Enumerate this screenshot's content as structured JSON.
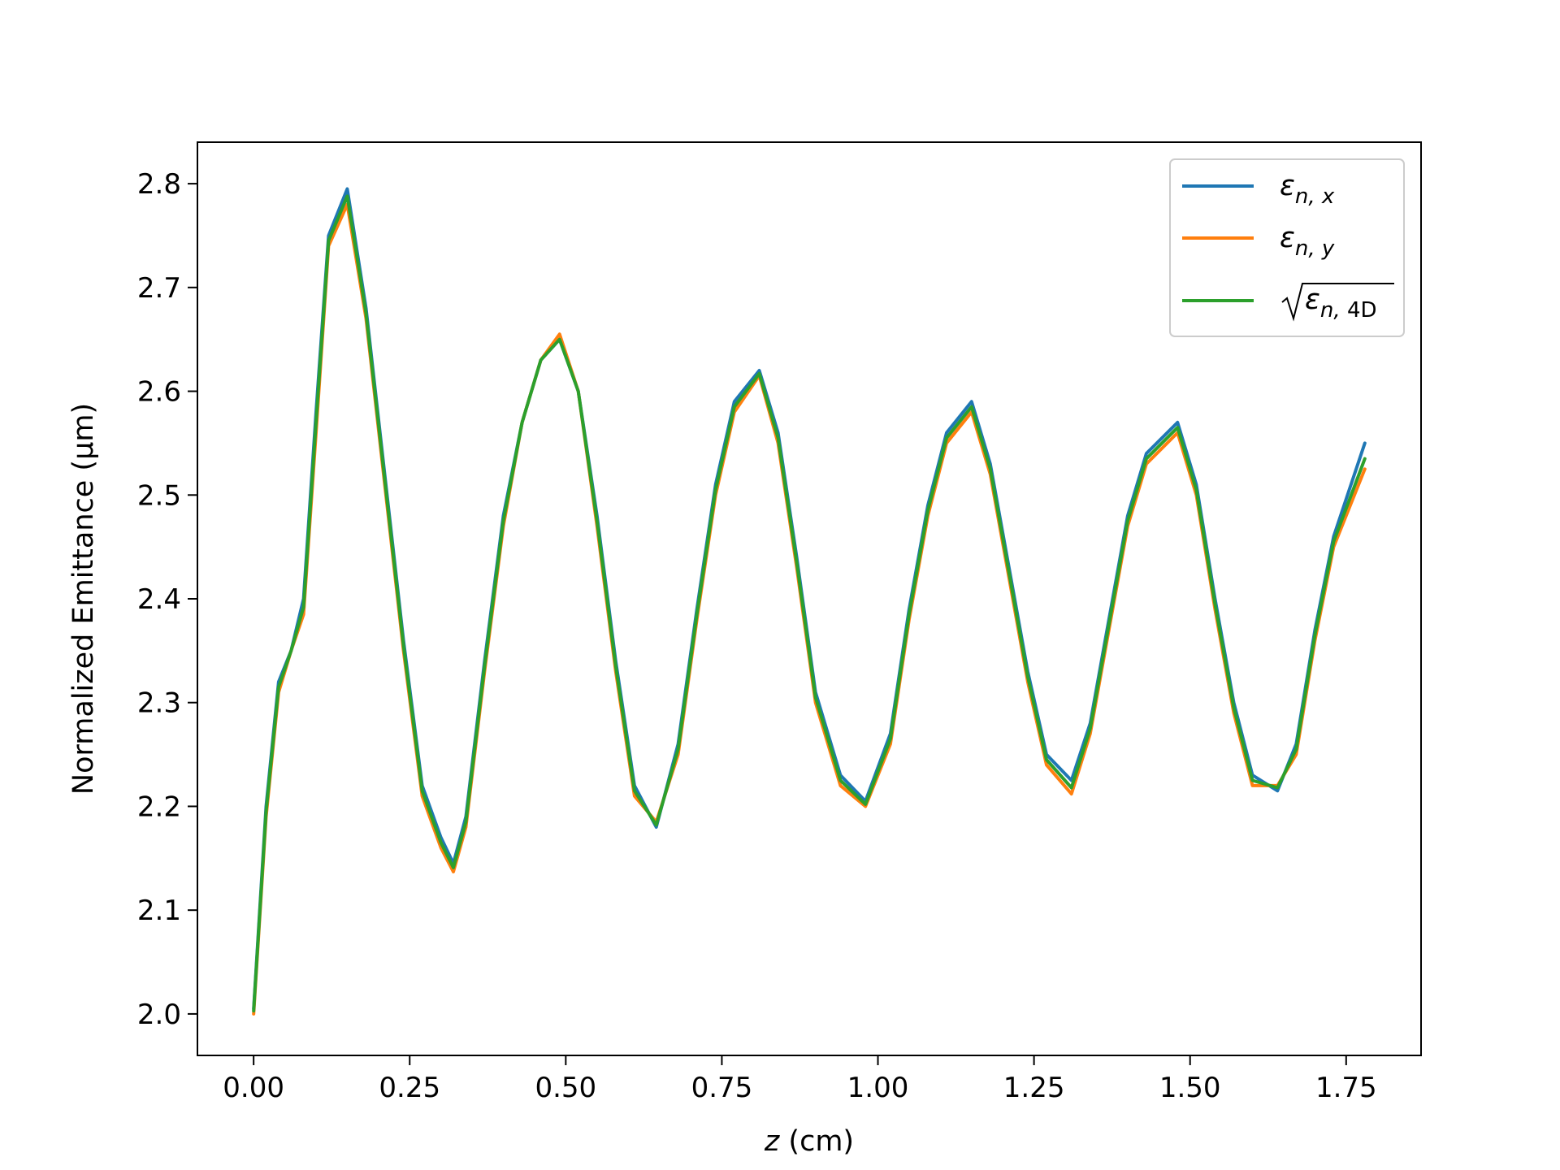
{
  "chart_data": {
    "type": "line",
    "xlabel": "z (cm)",
    "xlabel_parts": {
      "var": "z",
      "unit": "(cm)"
    },
    "ylabel": "Normalized Emittance (μm)",
    "xlim": [
      -0.09,
      1.87
    ],
    "ylim": [
      1.96,
      2.84
    ],
    "x_ticks": [
      0.0,
      0.25,
      0.5,
      0.75,
      1.0,
      1.25,
      1.5,
      1.75
    ],
    "x_tick_labels": [
      "0.00",
      "0.25",
      "0.50",
      "0.75",
      "1.00",
      "1.25",
      "1.50",
      "1.75"
    ],
    "y_ticks": [
      2.0,
      2.1,
      2.2,
      2.3,
      2.4,
      2.5,
      2.6,
      2.7,
      2.8
    ],
    "y_tick_labels": [
      "2.0",
      "2.1",
      "2.2",
      "2.3",
      "2.4",
      "2.5",
      "2.6",
      "2.7",
      "2.8"
    ],
    "grid": false,
    "legend_position": "upper right",
    "series": [
      {
        "name": "εn,x",
        "name_base": "ε",
        "name_sub": "n, x",
        "color": "#1f77b4",
        "x": [
          0.0,
          0.02,
          0.04,
          0.06,
          0.08,
          0.1,
          0.12,
          0.15,
          0.18,
          0.21,
          0.24,
          0.27,
          0.3,
          0.32,
          0.34,
          0.37,
          0.4,
          0.43,
          0.46,
          0.49,
          0.52,
          0.55,
          0.58,
          0.61,
          0.645,
          0.68,
          0.71,
          0.74,
          0.77,
          0.81,
          0.84,
          0.87,
          0.9,
          0.94,
          0.98,
          1.02,
          1.05,
          1.08,
          1.11,
          1.15,
          1.18,
          1.21,
          1.24,
          1.27,
          1.31,
          1.34,
          1.37,
          1.4,
          1.43,
          1.48,
          1.51,
          1.54,
          1.57,
          1.6,
          1.64,
          1.67,
          1.7,
          1.73,
          1.78
        ],
        "y": [
          2.005,
          2.2,
          2.32,
          2.35,
          2.4,
          2.58,
          2.75,
          2.795,
          2.68,
          2.52,
          2.36,
          2.22,
          2.17,
          2.145,
          2.19,
          2.34,
          2.48,
          2.57,
          2.63,
          2.65,
          2.6,
          2.48,
          2.34,
          2.22,
          2.18,
          2.26,
          2.39,
          2.51,
          2.59,
          2.62,
          2.56,
          2.44,
          2.31,
          2.23,
          2.205,
          2.27,
          2.39,
          2.49,
          2.56,
          2.59,
          2.53,
          2.43,
          2.33,
          2.25,
          2.225,
          2.28,
          2.38,
          2.48,
          2.54,
          2.57,
          2.51,
          2.4,
          2.3,
          2.23,
          2.215,
          2.26,
          2.37,
          2.46,
          2.55
        ]
      },
      {
        "name": "εn,y",
        "name_base": "ε",
        "name_sub": "n, y",
        "color": "#ff7f0e",
        "x": [
          0.0,
          0.02,
          0.04,
          0.06,
          0.08,
          0.1,
          0.12,
          0.15,
          0.18,
          0.21,
          0.24,
          0.27,
          0.3,
          0.32,
          0.34,
          0.37,
          0.4,
          0.43,
          0.46,
          0.49,
          0.52,
          0.55,
          0.58,
          0.61,
          0.645,
          0.68,
          0.71,
          0.74,
          0.77,
          0.81,
          0.84,
          0.87,
          0.9,
          0.94,
          0.98,
          1.02,
          1.05,
          1.08,
          1.11,
          1.15,
          1.18,
          1.21,
          1.24,
          1.27,
          1.31,
          1.34,
          1.37,
          1.4,
          1.43,
          1.48,
          1.51,
          1.54,
          1.57,
          1.6,
          1.64,
          1.67,
          1.7,
          1.73,
          1.78
        ],
        "y": [
          2.0,
          2.19,
          2.31,
          2.35,
          2.385,
          2.56,
          2.74,
          2.78,
          2.67,
          2.51,
          2.35,
          2.21,
          2.16,
          2.137,
          2.18,
          2.33,
          2.47,
          2.57,
          2.63,
          2.655,
          2.6,
          2.47,
          2.33,
          2.21,
          2.185,
          2.25,
          2.38,
          2.5,
          2.58,
          2.615,
          2.55,
          2.43,
          2.3,
          2.22,
          2.2,
          2.26,
          2.38,
          2.48,
          2.55,
          2.58,
          2.52,
          2.42,
          2.32,
          2.24,
          2.212,
          2.27,
          2.37,
          2.47,
          2.53,
          2.56,
          2.5,
          2.39,
          2.29,
          2.22,
          2.22,
          2.25,
          2.36,
          2.45,
          2.525
        ]
      },
      {
        "name": "√εn,4D",
        "name_base": "ε",
        "name_sub": "n, ",
        "name_sub_upright": "4D",
        "color": "#2ca02c",
        "x": [
          0.0,
          0.02,
          0.04,
          0.06,
          0.08,
          0.1,
          0.12,
          0.15,
          0.18,
          0.21,
          0.24,
          0.27,
          0.3,
          0.32,
          0.34,
          0.37,
          0.4,
          0.43,
          0.46,
          0.49,
          0.52,
          0.55,
          0.58,
          0.61,
          0.645,
          0.68,
          0.71,
          0.74,
          0.77,
          0.81,
          0.84,
          0.87,
          0.9,
          0.94,
          0.98,
          1.02,
          1.05,
          1.08,
          1.11,
          1.15,
          1.18,
          1.21,
          1.24,
          1.27,
          1.31,
          1.34,
          1.37,
          1.4,
          1.43,
          1.48,
          1.51,
          1.54,
          1.57,
          1.6,
          1.64,
          1.67,
          1.7,
          1.73,
          1.78
        ],
        "y": [
          2.003,
          2.195,
          2.315,
          2.35,
          2.392,
          2.57,
          2.745,
          2.788,
          2.675,
          2.515,
          2.355,
          2.215,
          2.165,
          2.141,
          2.185,
          2.335,
          2.475,
          2.57,
          2.63,
          2.65,
          2.6,
          2.475,
          2.335,
          2.215,
          2.182,
          2.255,
          2.385,
          2.505,
          2.585,
          2.617,
          2.555,
          2.435,
          2.305,
          2.225,
          2.202,
          2.265,
          2.385,
          2.485,
          2.555,
          2.585,
          2.525,
          2.425,
          2.325,
          2.245,
          2.218,
          2.275,
          2.375,
          2.475,
          2.535,
          2.565,
          2.505,
          2.395,
          2.295,
          2.225,
          2.218,
          2.255,
          2.365,
          2.455,
          2.535
        ]
      }
    ]
  }
}
